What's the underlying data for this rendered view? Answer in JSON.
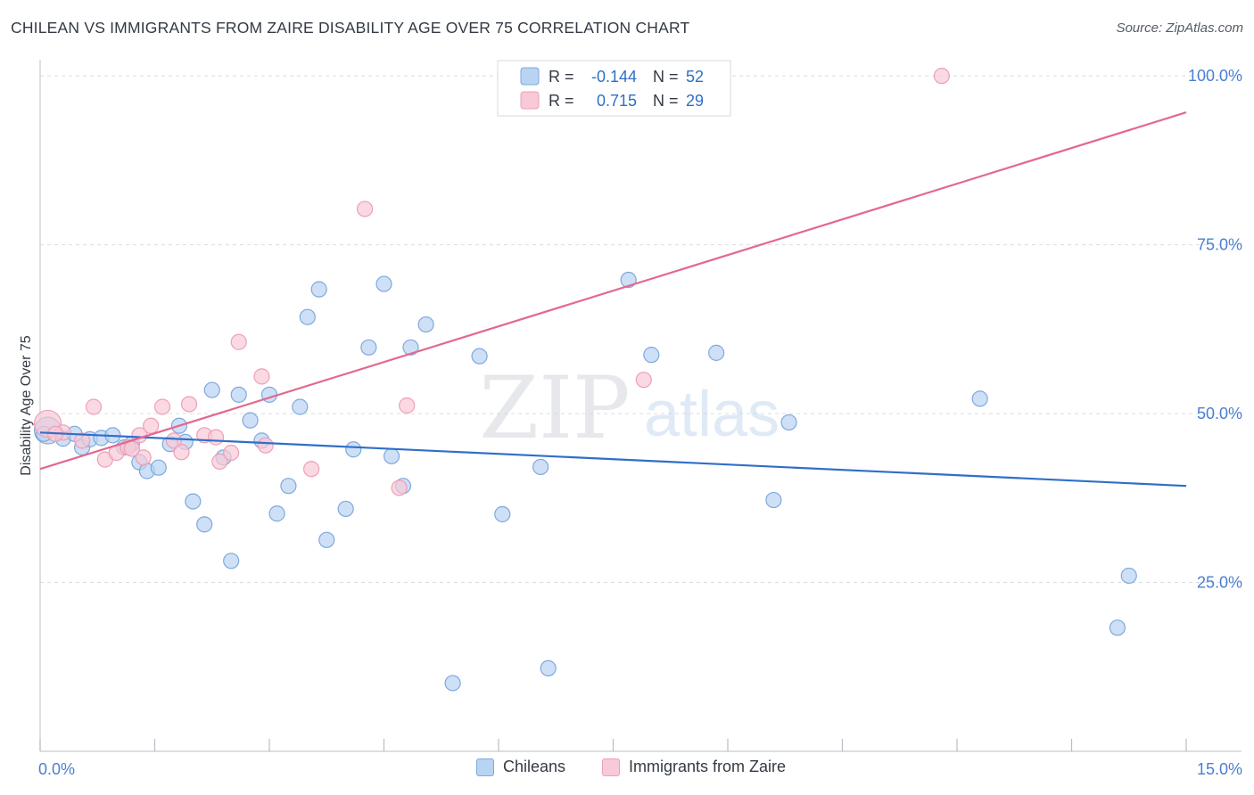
{
  "header": {
    "title": "CHILEAN VS IMMIGRANTS FROM ZAIRE DISABILITY AGE OVER 75 CORRELATION CHART",
    "source": "Source: ZipAtlas.com"
  },
  "watermark": {
    "zip": "ZIP",
    "atlas": "atlas"
  },
  "colors": {
    "blue_fill": "#b9d3f2",
    "blue_stroke": "#7fa8dd",
    "blue_line": "#2f6fc8",
    "pink_fill": "#f8c9d6",
    "pink_stroke": "#ee9fb7",
    "pink_line": "#e2688f",
    "tick_label": "#4a7fd0",
    "grid": "#d9dde3"
  },
  "legend_top": {
    "rows": [
      {
        "series": "Chileans",
        "r_label": "R =",
        "r_value": "-0.144",
        "n_label": "N =",
        "n_value": "52"
      },
      {
        "series": "Immigrants from Zaire",
        "r_label": "R =",
        "r_value": "0.715",
        "n_label": "N =",
        "n_value": "29"
      }
    ]
  },
  "legend_bottom": {
    "items": [
      "Chileans",
      "Immigrants from Zaire"
    ]
  },
  "chart_data": {
    "type": "scatter",
    "title": "CHILEAN VS IMMIGRANTS FROM ZAIRE DISABILITY AGE OVER 75 CORRELATION CHART",
    "xlabel": "",
    "ylabel": "Disability Age Over 75",
    "xlim": [
      0,
      15
    ],
    "ylim": [
      0,
      102
    ],
    "x_tick_labels": [
      "0.0%",
      "15.0%"
    ],
    "y_ticks": [
      25,
      50,
      75,
      100
    ],
    "y_tick_labels": [
      "25.0%",
      "50.0%",
      "75.0%",
      "100.0%"
    ],
    "grid": true,
    "series": [
      {
        "name": "Chileans",
        "r": -0.144,
        "n": 52,
        "trend": {
          "x": [
            0,
            15
          ],
          "y": [
            47.2,
            39.3
          ]
        },
        "points": [
          [
            0.1,
            47.5
          ],
          [
            0.3,
            46.3
          ],
          [
            0.45,
            47.0
          ],
          [
            0.55,
            45.0
          ],
          [
            0.65,
            46.2
          ],
          [
            0.8,
            46.4
          ],
          [
            0.95,
            46.8
          ],
          [
            1.1,
            45.0
          ],
          [
            1.2,
            45.5
          ],
          [
            1.3,
            42.8
          ],
          [
            1.4,
            41.5
          ],
          [
            1.55,
            42.0
          ],
          [
            1.7,
            45.5
          ],
          [
            1.82,
            48.2
          ],
          [
            1.9,
            45.8
          ],
          [
            2.0,
            37.0
          ],
          [
            2.15,
            33.6
          ],
          [
            2.25,
            53.5
          ],
          [
            2.4,
            43.5
          ],
          [
            2.5,
            28.2
          ],
          [
            2.6,
            52.8
          ],
          [
            2.75,
            49.0
          ],
          [
            2.9,
            46.0
          ],
          [
            3.0,
            52.8
          ],
          [
            3.1,
            35.2
          ],
          [
            3.25,
            39.3
          ],
          [
            3.4,
            51.0
          ],
          [
            3.5,
            64.3
          ],
          [
            3.65,
            68.4
          ],
          [
            3.75,
            31.3
          ],
          [
            4.0,
            35.9
          ],
          [
            4.1,
            44.7
          ],
          [
            4.3,
            59.8
          ],
          [
            4.5,
            69.2
          ],
          [
            4.6,
            43.7
          ],
          [
            4.75,
            39.3
          ],
          [
            4.85,
            59.8
          ],
          [
            5.05,
            63.2
          ],
          [
            5.4,
            10.1
          ],
          [
            5.75,
            58.5
          ],
          [
            6.05,
            35.1
          ],
          [
            6.55,
            42.1
          ],
          [
            6.65,
            12.3
          ],
          [
            7.7,
            69.8
          ],
          [
            8.0,
            58.7
          ],
          [
            8.85,
            59.0
          ],
          [
            9.6,
            37.2
          ],
          [
            9.8,
            48.7
          ],
          [
            12.3,
            52.2
          ],
          [
            14.1,
            18.3
          ],
          [
            14.25,
            26.0
          ],
          [
            0.05,
            47.0
          ]
        ]
      },
      {
        "name": "Immigrants from Zaire",
        "r": 0.715,
        "n": 29,
        "trend": {
          "x": [
            0,
            15
          ],
          "y": [
            41.8,
            94.6
          ]
        },
        "points": [
          [
            0.1,
            48.5
          ],
          [
            0.3,
            47.2
          ],
          [
            0.55,
            46.0
          ],
          [
            0.7,
            51.0
          ],
          [
            0.85,
            43.2
          ],
          [
            1.0,
            44.2
          ],
          [
            1.15,
            45.0
          ],
          [
            1.3,
            46.8
          ],
          [
            1.35,
            43.5
          ],
          [
            1.45,
            48.2
          ],
          [
            1.6,
            51.0
          ],
          [
            1.75,
            46.0
          ],
          [
            1.85,
            44.3
          ],
          [
            1.95,
            51.4
          ],
          [
            2.15,
            46.8
          ],
          [
            2.3,
            46.5
          ],
          [
            2.35,
            42.9
          ],
          [
            2.5,
            44.2
          ],
          [
            2.6,
            60.6
          ],
          [
            2.9,
            55.5
          ],
          [
            2.95,
            45.3
          ],
          [
            3.55,
            41.8
          ],
          [
            4.25,
            80.3
          ],
          [
            4.7,
            39.0
          ],
          [
            4.8,
            51.2
          ],
          [
            7.9,
            55.0
          ],
          [
            11.8,
            100.0
          ],
          [
            0.2,
            47.0
          ],
          [
            1.2,
            44.8
          ]
        ]
      }
    ]
  }
}
